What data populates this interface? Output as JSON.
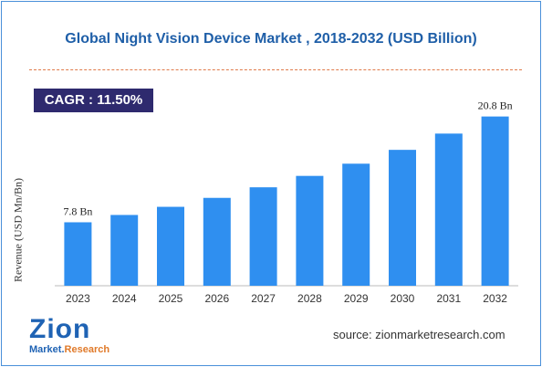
{
  "title": "Global Night Vision Device Market , 2018-2032 (USD Billion)",
  "cagr_label": "CAGR : 11.50%",
  "source": "source: zionmarketresearch.com",
  "logo": {
    "main": "Zion",
    "sub_left": "Market.",
    "sub_right": "Research"
  },
  "colors": {
    "bar": "#2f8ff0",
    "title": "#1f5fa8",
    "cagr_bg": "#2e2a6e",
    "divider": "#e07a4a"
  },
  "chart_data": {
    "type": "bar",
    "categories": [
      "2023",
      "2024",
      "2025",
      "2026",
      "2027",
      "2028",
      "2029",
      "2030",
      "2031",
      "2032"
    ],
    "values": [
      7.8,
      8.7,
      9.7,
      10.8,
      12.1,
      13.5,
      15.0,
      16.7,
      18.7,
      20.8
    ],
    "data_labels": [
      "7.8 Bn",
      "",
      "",
      "",
      "",
      "",
      "",
      "",
      "",
      "20.8 Bn"
    ],
    "xlabel": "",
    "ylabel": "Revenue (USD Mn/Bn)",
    "ylim": [
      0,
      23
    ],
    "grid": false,
    "legend": "none"
  }
}
